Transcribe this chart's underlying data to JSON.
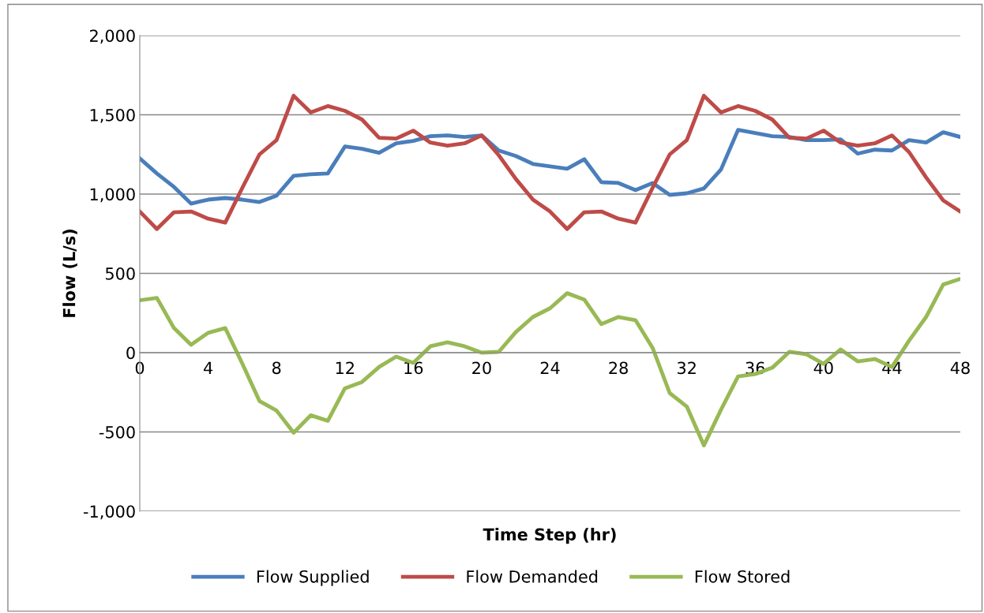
{
  "chart_data": {
    "type": "line",
    "xlabel": "Time Step (hr)",
    "ylabel": "Flow (L/s)",
    "x": [
      0,
      1,
      2,
      3,
      4,
      5,
      6,
      7,
      8,
      9,
      10,
      11,
      12,
      13,
      14,
      15,
      16,
      17,
      18,
      19,
      20,
      21,
      22,
      23,
      24,
      25,
      26,
      27,
      28,
      29,
      30,
      31,
      32,
      33,
      34,
      35,
      36,
      37,
      38,
      39,
      40,
      41,
      42,
      43,
      44,
      45,
      46,
      47,
      48
    ],
    "series": [
      {
        "name": "Flow Supplied",
        "color": "#4a7ebb",
        "values": [
          1225,
          1130,
          1045,
          940,
          965,
          975,
          965,
          950,
          990,
          1115,
          1125,
          1130,
          1300,
          1285,
          1260,
          1320,
          1335,
          1365,
          1370,
          1360,
          1370,
          1275,
          1240,
          1190,
          1175,
          1160,
          1220,
          1075,
          1070,
          1025,
          1070,
          995,
          1005,
          1035,
          1155,
          1405,
          1385,
          1365,
          1360,
          1340,
          1340,
          1345,
          1255,
          1280,
          1275,
          1340,
          1325,
          1390,
          1360
        ]
      },
      {
        "name": "Flow Demanded",
        "color": "#be4b48",
        "values": [
          890,
          780,
          885,
          890,
          845,
          820,
          1040,
          1250,
          1340,
          1620,
          1515,
          1555,
          1525,
          1470,
          1355,
          1350,
          1400,
          1325,
          1305,
          1320,
          1370,
          1245,
          1095,
          965,
          890,
          780,
          885,
          890,
          845,
          820,
          1040,
          1250,
          1340,
          1620,
          1515,
          1555,
          1525,
          1470,
          1355,
          1350,
          1400,
          1325,
          1305,
          1320,
          1370,
          1265,
          1105,
          960,
          890
        ]
      },
      {
        "name": "Flow Stored",
        "color": "#98b954",
        "values": [
          330,
          345,
          155,
          50,
          125,
          155,
          -70,
          -305,
          -365,
          -505,
          -395,
          -430,
          -225,
          -185,
          -90,
          -25,
          -65,
          40,
          65,
          40,
          0,
          5,
          130,
          225,
          280,
          375,
          335,
          180,
          225,
          205,
          30,
          -255,
          -340,
          -585,
          -360,
          -150,
          -135,
          -95,
          5,
          -10,
          -70,
          20,
          -55,
          -40,
          -90,
          75,
          225,
          430,
          465
        ]
      }
    ],
    "xlim": [
      0,
      48
    ],
    "xticks": [
      0,
      4,
      8,
      12,
      16,
      20,
      24,
      28,
      32,
      36,
      40,
      44,
      48
    ],
    "ylim": [
      -1000,
      2000
    ],
    "yticks": [
      {
        "value": -1000,
        "label": "-1,000"
      },
      -500,
      0,
      500,
      {
        "value": 1000,
        "label": "1,000"
      },
      {
        "value": 1500,
        "label": "1,500"
      },
      {
        "value": 2000,
        "label": "2,000"
      }
    ],
    "grid": "y",
    "legend": "bottom",
    "marker": "none",
    "line_style": "solid"
  }
}
